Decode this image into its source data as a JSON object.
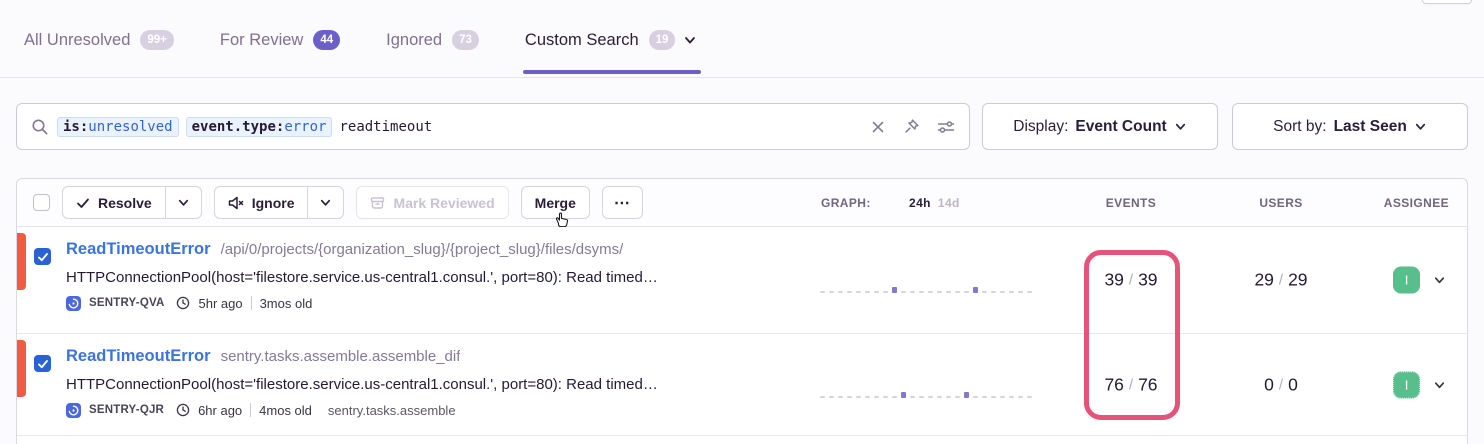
{
  "tabs": [
    {
      "label": "All Unresolved",
      "badge": "99+",
      "active": false
    },
    {
      "label": "For Review",
      "badge": "44",
      "active": false
    },
    {
      "label": "Ignored",
      "badge": "73",
      "active": false
    },
    {
      "label": "Custom Search",
      "badge": "19",
      "active": true
    }
  ],
  "search": {
    "tokens": [
      {
        "key": "is:",
        "value": "unresolved"
      },
      {
        "key": "event.type:",
        "value": "error"
      }
    ],
    "free_text": "readtimeout",
    "icons": [
      "search-icon",
      "clear-icon",
      "pin-icon",
      "sliders-icon"
    ]
  },
  "display_dropdown": {
    "label": "Display:",
    "value": "Event Count"
  },
  "sort_dropdown": {
    "label": "Sort by:",
    "value": "Last Seen"
  },
  "toolbar": {
    "resolve_label": "Resolve",
    "ignore_label": "Ignore",
    "mark_reviewed_label": "Mark Reviewed",
    "merge_label": "Merge",
    "more_label": "⋯"
  },
  "columns": {
    "graph_label": "GRAPH:",
    "range_24h": "24h",
    "range_14d": "14d",
    "events_label": "EVENTS",
    "users_label": "USERS",
    "assignee_label": "ASSIGNEE"
  },
  "rows": [
    {
      "title": "ReadTimeoutError",
      "subtitle": "/api/0/projects/{organization_slug}/{project_slug}/files/dsyms/",
      "message": "HTTPConnectionPool(host='filestore.service.us-central1.consul.', port=80): Read timed…",
      "project": "SENTRY-QVA",
      "age_new": "5hr ago",
      "age_old": "3mos old",
      "tag": "",
      "events": [
        "39",
        "39"
      ],
      "users": [
        "29",
        "29"
      ],
      "assignee_initial": "I",
      "sparkline": [
        0,
        0,
        0,
        0,
        0,
        0,
        0,
        0,
        1,
        0,
        0,
        0,
        0,
        0,
        0,
        0,
        0,
        1,
        0,
        0,
        0,
        0,
        0,
        0
      ]
    },
    {
      "title": "ReadTimeoutError",
      "subtitle": "sentry.tasks.assemble.assemble_dif",
      "message": "HTTPConnectionPool(host='filestore.service.us-central1.consul.', port=80): Read timed…",
      "project": "SENTRY-QJR",
      "age_new": "6hr ago",
      "age_old": "4mos old",
      "tag": "sentry.tasks.assemble",
      "events": [
        "76",
        "76"
      ],
      "users": [
        "0",
        "0"
      ],
      "assignee_initial": "I",
      "sparkline": [
        0,
        0,
        0,
        0,
        0,
        0,
        0,
        0,
        0,
        1,
        0,
        0,
        0,
        0,
        0,
        0,
        1,
        0,
        0,
        0,
        0,
        0,
        0,
        0
      ]
    }
  ],
  "colors": {
    "accent_purple": "#6C5FC7",
    "annotation_pink": "#e5537b",
    "level_error_orange": "#ec5e44",
    "assignee_green": "#57be8c",
    "link_blue": "#3c74dd",
    "checkbox_blue": "#2962d2"
  }
}
